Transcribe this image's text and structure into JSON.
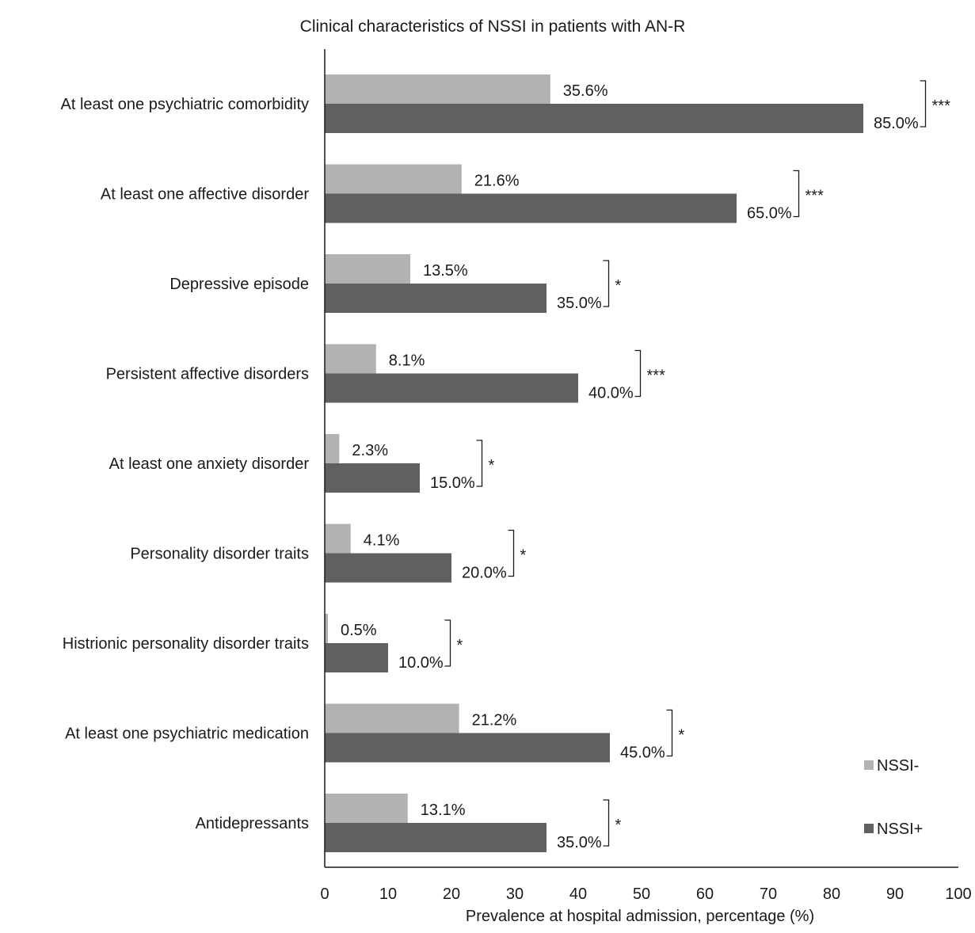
{
  "chart_data": {
    "type": "bar",
    "orientation": "horizontal",
    "title": "Clinical characteristics of NSSI in patients with AN-R",
    "xlabel": "Prevalence at hospital admission, percentage (%)",
    "ylabel": "",
    "xlim": [
      0,
      100
    ],
    "x_ticks": [
      "0",
      "10",
      "20",
      "30",
      "40",
      "50",
      "60",
      "70",
      "80",
      "90",
      "100"
    ],
    "grid": false,
    "legend_position": "bottom-right",
    "categories": [
      "At least one psychiatric comorbidity",
      "At least one affective disorder",
      "Depressive episode",
      "Persistent affective disorders",
      "At least one anxiety disorder",
      "Personality disorder traits",
      "Histrionic personality disorder traits",
      "At least one psychiatric medication",
      "Antidepressants"
    ],
    "series": [
      {
        "name": "NSSI-",
        "color": "#b2b2b2",
        "values": [
          35.6,
          21.6,
          13.5,
          8.1,
          2.3,
          4.1,
          0.5,
          21.2,
          13.1
        ],
        "labels": [
          "35.6%",
          "21.6%",
          "13.5%",
          "8.1%",
          "2.3%",
          "4.1%",
          "0.5%",
          "21.2%",
          "13.1%"
        ]
      },
      {
        "name": "NSSI+",
        "color": "#606060",
        "values": [
          85.0,
          65.0,
          35.0,
          40.0,
          15.0,
          20.0,
          10.0,
          45.0,
          35.0
        ],
        "labels": [
          "85.0%",
          "65.0%",
          "35.0%",
          "40.0%",
          "15.0%",
          "20.0%",
          "10.0%",
          "45.0%",
          "35.0%"
        ]
      }
    ],
    "significance": [
      "***",
      "***",
      "*",
      "***",
      "*",
      "*",
      "*",
      "*",
      "*"
    ]
  }
}
